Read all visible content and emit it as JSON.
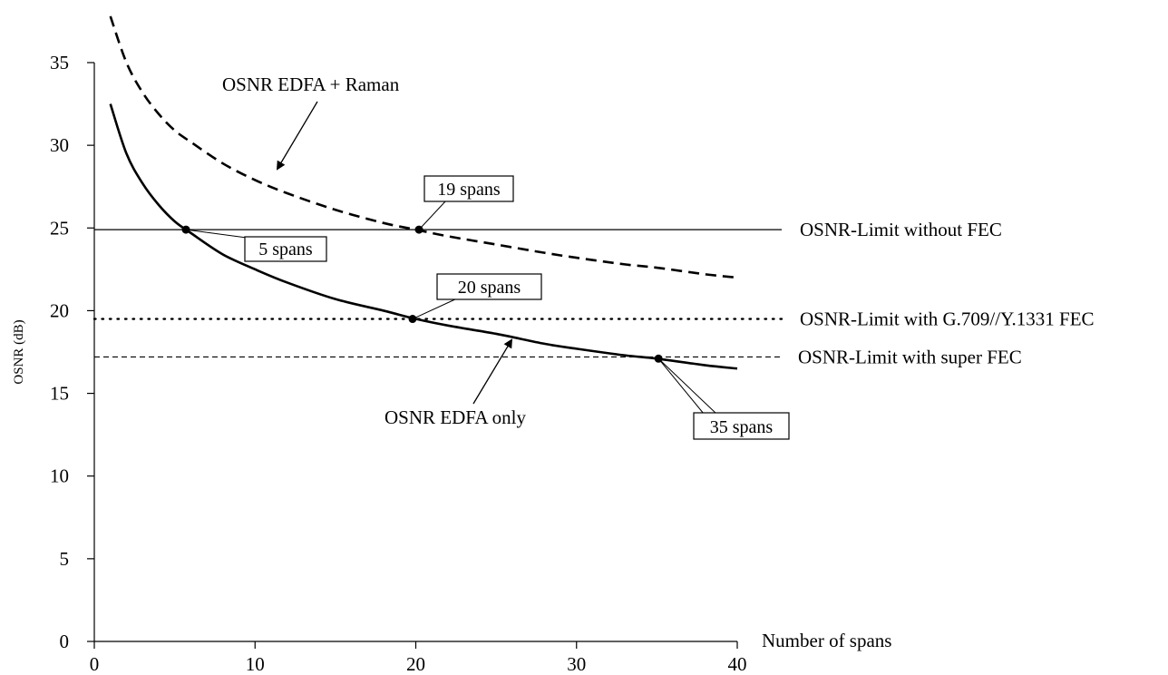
{
  "chart_data": {
    "type": "line",
    "title": "",
    "xlabel": "Number of spans",
    "ylabel": "OSNR (dB)",
    "xlim": [
      0,
      40
    ],
    "ylim": [
      0,
      35
    ],
    "x_ticks": [
      0,
      10,
      20,
      30,
      40
    ],
    "y_ticks": [
      0,
      5,
      10,
      15,
      20,
      25,
      30,
      35
    ],
    "grid": false,
    "series": [
      {
        "name": "OSNR  EDFA only",
        "style": "solid-thick",
        "x": [
          1,
          2,
          3,
          4,
          5,
          6,
          8,
          10,
          12,
          15,
          18,
          20,
          22,
          25,
          28,
          30,
          33,
          35,
          38,
          40
        ],
        "y": [
          32.5,
          29.5,
          27.7,
          26.4,
          25.4,
          24.7,
          23.4,
          22.5,
          21.7,
          20.7,
          20.0,
          19.5,
          19.1,
          18.6,
          18.0,
          17.7,
          17.3,
          17.1,
          16.7,
          16.5
        ]
      },
      {
        "name": "OSNR  EDFA + Raman",
        "style": "dashed-thick",
        "x": [
          1,
          2,
          3,
          4,
          5,
          6,
          8,
          10,
          12,
          15,
          18,
          20,
          22,
          25,
          28,
          30,
          33,
          35,
          38,
          40
        ],
        "y": [
          37.8,
          35.0,
          33.2,
          31.9,
          30.9,
          30.2,
          28.9,
          27.9,
          27.1,
          26.1,
          25.3,
          24.9,
          24.5,
          24.0,
          23.5,
          23.2,
          22.8,
          22.6,
          22.2,
          22.0
        ]
      }
    ],
    "thresholds": [
      {
        "name": "OSNR-Limit without FEC",
        "y": 24.9,
        "style": "solid-thin"
      },
      {
        "name": "OSNR-Limit with G.709//Y.1331 FEC",
        "y": 19.5,
        "style": "dotted"
      },
      {
        "name": "OSNR-Limit with super FEC",
        "y": 17.2,
        "style": "dashed-thin"
      }
    ],
    "points": [
      {
        "label": "5 spans",
        "x": 5.7,
        "y": 24.9
      },
      {
        "label": "19 spans",
        "x": 20.2,
        "y": 24.9
      },
      {
        "label": "20 spans",
        "x": 19.8,
        "y": 19.5
      },
      {
        "label": "35 spans",
        "x": 35.1,
        "y": 17.1
      }
    ],
    "annotations": [
      "OSNR  EDFA + Raman",
      "OSNR  EDFA only"
    ]
  }
}
